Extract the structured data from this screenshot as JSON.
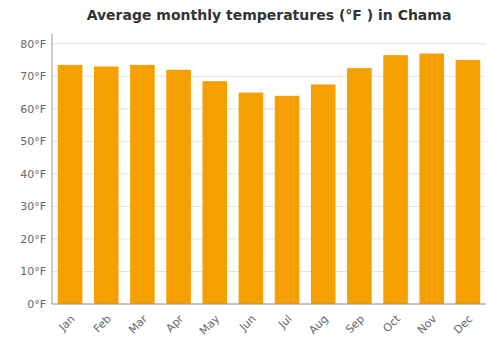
{
  "chart_data": {
    "type": "bar",
    "title": "Average monthly temperatures (°F ) in Chama",
    "categories": [
      "Jan",
      "Feb",
      "Mar",
      "Apr",
      "May",
      "Jun",
      "Jul",
      "Aug",
      "Sep",
      "Oct",
      "Nov",
      "Dec"
    ],
    "values": [
      73.5,
      73.0,
      73.5,
      72.0,
      68.5,
      65.0,
      64.0,
      67.5,
      72.5,
      76.5,
      77.0,
      75.0
    ],
    "color": "#F5A000",
    "ylim": [
      0,
      83
    ],
    "yticks": [
      {
        "value": 0,
        "label": "0°F"
      },
      {
        "value": 10,
        "label": "10°F"
      },
      {
        "value": 20,
        "label": "20°F"
      },
      {
        "value": 30,
        "label": "30°F"
      },
      {
        "value": 40,
        "label": "40°F"
      },
      {
        "value": 50,
        "label": "50°F"
      },
      {
        "value": 60,
        "label": "60°F"
      },
      {
        "value": 70,
        "label": "70°F"
      },
      {
        "value": 80,
        "label": "80°F"
      }
    ],
    "grid": true
  }
}
